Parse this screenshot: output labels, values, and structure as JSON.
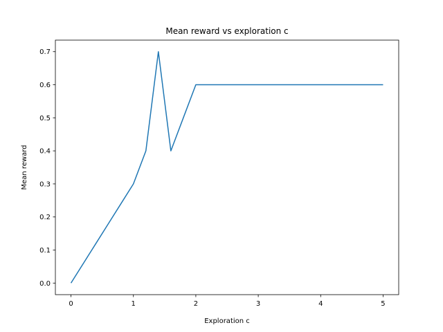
{
  "chart_data": {
    "type": "line",
    "title": "Mean reward vs exploration c",
    "xlabel": "Exploration c",
    "ylabel": "Mean reward",
    "xlim": [
      -0.25,
      5.25
    ],
    "ylim": [
      -0.035,
      0.735
    ],
    "x_ticks": [
      0,
      1,
      2,
      3,
      4,
      5
    ],
    "y_ticks": [
      0.0,
      0.1,
      0.2,
      0.3,
      0.4,
      0.5,
      0.6,
      0.7
    ],
    "x_tick_labels": [
      "0",
      "1",
      "2",
      "3",
      "4",
      "5"
    ],
    "y_tick_labels": [
      "0.0",
      "0.1",
      "0.2",
      "0.3",
      "0.4",
      "0.5",
      "0.6",
      "0.7"
    ],
    "grid": false,
    "series": [
      {
        "color": "#1f77b4",
        "x": [
          0.0,
          0.2,
          0.4,
          0.6,
          0.8,
          1.0,
          1.2,
          1.4,
          1.6,
          1.8,
          2.0,
          2.5,
          3.0,
          3.5,
          4.0,
          4.5,
          5.0
        ],
        "values": [
          0.0,
          0.06,
          0.12,
          0.18,
          0.24,
          0.3,
          0.4,
          0.7,
          0.4,
          0.5,
          0.6,
          0.6,
          0.6,
          0.6,
          0.6,
          0.6,
          0.6
        ]
      }
    ]
  }
}
